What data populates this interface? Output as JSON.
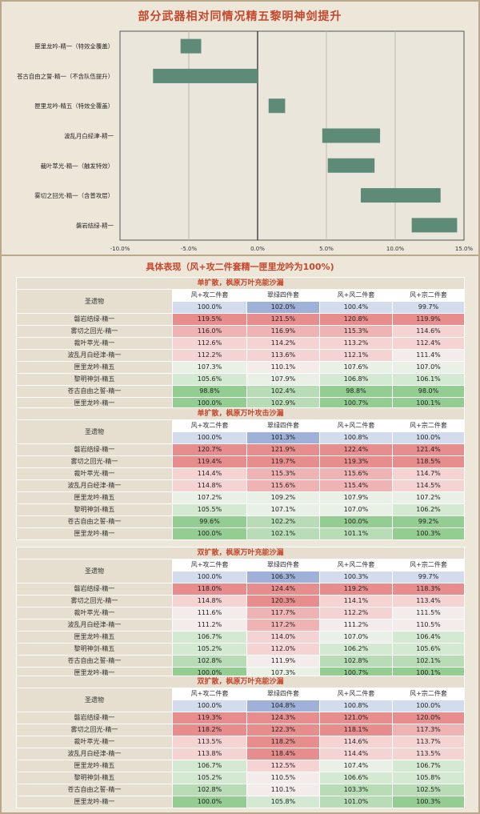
{
  "chart_data": {
    "type": "bar",
    "title": "部分武器相对同情况精五黎明神剑提升",
    "categories": [
      "匣里龙吟-精一（特效全覆盖）",
      "苍古自由之誓-精一（不含队伍提升）",
      "匣里龙吟-精五（特效全覆盖）",
      "波乱月白经津-精一",
      "裁叶萃光-精一（触发特效）",
      "雾切之回光-精一（含普攻层）",
      "磐岩结绿-精一"
    ],
    "ranges": [
      [
        -5.6,
        -4.1
      ],
      [
        -7.6,
        0
      ],
      [
        0.8,
        2.0
      ],
      [
        4.7,
        8.9
      ],
      [
        5.1,
        8.5
      ],
      [
        7.5,
        13.3
      ],
      [
        11.2,
        14.5
      ]
    ],
    "xlim": [
      -10,
      15
    ],
    "xticks": [
      -10,
      -5,
      0,
      5,
      10,
      15
    ],
    "xtick_labels": [
      "-10.0%",
      "-5.0%",
      "0.0%",
      "5.0%",
      "10.0%",
      "15.0%"
    ],
    "bar_color": "#5e8a78",
    "grid": true
  },
  "colors": {
    "red_strong": "#e98d8d",
    "green_strong": "#8ccc8c",
    "blue": "#9fb1d8",
    "blue_light": "#d3dcec",
    "accent": "#c5472c"
  },
  "detail": {
    "title": "具体表现（风+攻二件套精一匣里龙吟为100%)",
    "tables": [
      {
        "title": "单扩散，枫原万叶充能沙漏",
        "artifact_label": "圣遗物",
        "columns": [
          "风+攻二件套",
          "翠绿四件套",
          "风+风二件套",
          "风+宗二件套"
        ],
        "baseline": [
          "100.0%",
          "102.0%",
          "100.4%",
          "99.7%"
        ],
        "rows": [
          {
            "name": "磐岩结绿-精一",
            "values": [
              "119.5%",
              "121.5%",
              "120.8%",
              "119.9%"
            ]
          },
          {
            "name": "雾切之回光-精一",
            "values": [
              "116.0%",
              "116.9%",
              "115.3%",
              "114.6%"
            ]
          },
          {
            "name": "裁叶萃光-精一",
            "values": [
              "112.6%",
              "114.2%",
              "113.2%",
              "112.4%"
            ]
          },
          {
            "name": "波乱月白经津-精一",
            "values": [
              "112.2%",
              "113.6%",
              "112.1%",
              "111.4%"
            ]
          },
          {
            "name": "匣里龙吟-精五",
            "values": [
              "107.3%",
              "110.1%",
              "107.6%",
              "107.0%"
            ]
          },
          {
            "name": "黎明神剑-精五",
            "values": [
              "105.6%",
              "107.9%",
              "106.8%",
              "106.1%"
            ]
          },
          {
            "name": "苍古自由之誓-精一",
            "values": [
              "98.8%",
              "102.4%",
              "98.8%",
              "98.0%"
            ]
          },
          {
            "name": "匣里龙吟-精一",
            "values": [
              "100.0%",
              "102.9%",
              "100.7%",
              "100.1%"
            ]
          }
        ]
      },
      {
        "title": "单扩散，枫原万叶攻击沙漏",
        "artifact_label": "圣遗物",
        "columns": [
          "风+攻二件套",
          "翠绿四件套",
          "风+风二件套",
          "风+宗二件套"
        ],
        "baseline": [
          "100.0%",
          "101.3%",
          "100.8%",
          "100.0%"
        ],
        "rows": [
          {
            "name": "磐岩结绿-精一",
            "values": [
              "120.7%",
              "121.9%",
              "122.4%",
              "121.4%"
            ]
          },
          {
            "name": "雾切之回光-精一",
            "values": [
              "119.4%",
              "119.7%",
              "119.3%",
              "118.5%"
            ]
          },
          {
            "name": "裁叶萃光-精一",
            "values": [
              "114.4%",
              "115.3%",
              "115.6%",
              "114.7%"
            ]
          },
          {
            "name": "波乱月白经津-精一",
            "values": [
              "114.8%",
              "115.6%",
              "115.4%",
              "114.5%"
            ]
          },
          {
            "name": "匣里龙吟-精五",
            "values": [
              "107.2%",
              "109.2%",
              "107.9%",
              "107.2%"
            ]
          },
          {
            "name": "黎明神剑-精五",
            "values": [
              "105.5%",
              "107.1%",
              "107.0%",
              "106.2%"
            ]
          },
          {
            "name": "苍古自由之誓-精一",
            "values": [
              "99.6%",
              "102.2%",
              "100.0%",
              "99.2%"
            ]
          },
          {
            "name": "匣里龙吟-精一",
            "values": [
              "100.0%",
              "102.1%",
              "101.1%",
              "100.3%"
            ]
          }
        ]
      },
      {
        "title": "双扩散，枫原万叶充能沙漏",
        "artifact_label": "圣遗物",
        "columns": [
          "风+攻二件套",
          "翠绿四件套",
          "风+风二件套",
          "风+宗二件套"
        ],
        "baseline": [
          "100.0%",
          "106.3%",
          "100.3%",
          "99.7%"
        ],
        "rows": [
          {
            "name": "磐岩结绿-精一",
            "values": [
              "118.0%",
              "124.4%",
              "119.2%",
              "118.3%"
            ]
          },
          {
            "name": "雾切之回光-精一",
            "values": [
              "114.8%",
              "120.3%",
              "114.1%",
              "113.4%"
            ]
          },
          {
            "name": "裁叶萃光-精一",
            "values": [
              "111.6%",
              "117.7%",
              "112.2%",
              "111.5%"
            ]
          },
          {
            "name": "波乱月白经津-精一",
            "values": [
              "111.2%",
              "117.2%",
              "111.2%",
              "110.5%"
            ]
          },
          {
            "name": "匣里龙吟-精五",
            "values": [
              "106.7%",
              "114.0%",
              "107.0%",
              "106.4%"
            ]
          },
          {
            "name": "黎明神剑-精五",
            "values": [
              "105.2%",
              "112.0%",
              "106.2%",
              "105.6%"
            ]
          },
          {
            "name": "苍古自由之誓-精一",
            "values": [
              "102.8%",
              "111.9%",
              "102.8%",
              "102.1%"
            ]
          },
          {
            "name": "匣里龙吟-精一",
            "values": [
              "100.0%",
              "107.3%",
              "100.7%",
              "100.1%"
            ]
          }
        ]
      },
      {
        "title": "双扩散，枫原万叶充能沙漏",
        "artifact_label": "圣遗物",
        "columns": [
          "风+攻二件套",
          "翠绿四件套",
          "风+风二件套",
          "风+宗二件套"
        ],
        "baseline": [
          "100.0%",
          "104.8%",
          "100.8%",
          "100.0%"
        ],
        "rows": [
          {
            "name": "磐岩结绿-精一",
            "values": [
              "119.3%",
              "124.3%",
              "121.0%",
              "120.0%"
            ]
          },
          {
            "name": "雾切之回光-精一",
            "values": [
              "118.2%",
              "122.3%",
              "118.1%",
              "117.3%"
            ]
          },
          {
            "name": "裁叶萃光-精一",
            "values": [
              "113.5%",
              "118.2%",
              "114.6%",
              "113.7%"
            ]
          },
          {
            "name": "波乱月白经津-精一",
            "values": [
              "113.8%",
              "118.4%",
              "114.4%",
              "113.5%"
            ]
          },
          {
            "name": "匣里龙吟-精五",
            "values": [
              "106.7%",
              "112.5%",
              "107.4%",
              "106.7%"
            ]
          },
          {
            "name": "黎明神剑-精五",
            "values": [
              "105.2%",
              "110.5%",
              "106.6%",
              "105.8%"
            ]
          },
          {
            "name": "苍古自由之誓-精一",
            "values": [
              "102.8%",
              "110.1%",
              "103.3%",
              "102.5%"
            ]
          },
          {
            "name": "匣里龙吟-精一",
            "values": [
              "100.0%",
              "105.8%",
              "101.0%",
              "100.3%"
            ]
          }
        ]
      }
    ]
  }
}
